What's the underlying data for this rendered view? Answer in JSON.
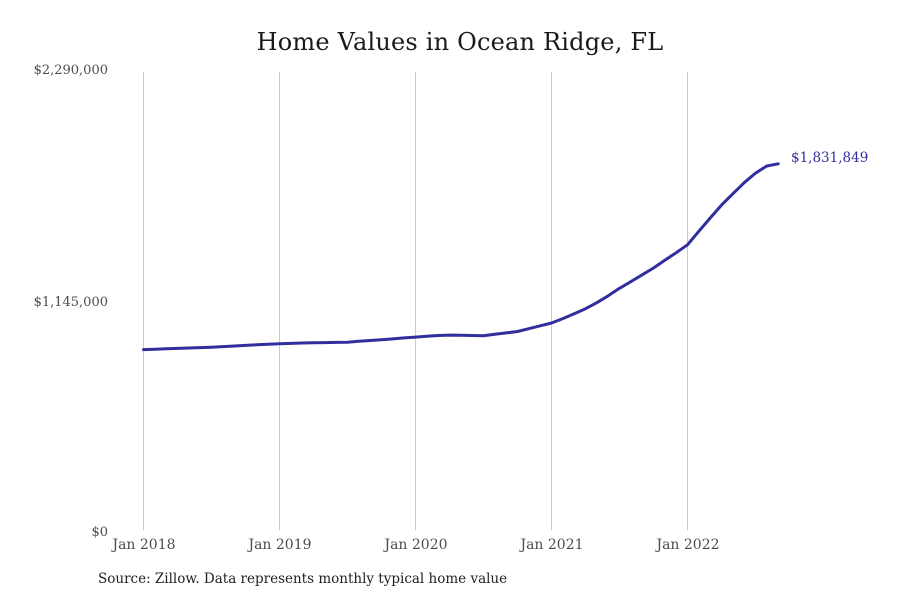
{
  "chart_data": {
    "type": "line",
    "title": "Home Values in Ocean Ridge, FL",
    "xlabel": "",
    "ylabel": "",
    "ylim": [
      0,
      2290000
    ],
    "grid": "vertical-only",
    "legend": "none",
    "line_color": "#312e9d",
    "grid_color": "#cbcbcb",
    "y_ticks": [
      {
        "value": 0,
        "label": "$0"
      },
      {
        "value": 1145000,
        "label": "$1,145,000"
      },
      {
        "value": 2290000,
        "label": "$2,290,000"
      }
    ],
    "x_ticks": [
      {
        "month_index": 0,
        "label": "Jan 2018"
      },
      {
        "month_index": 12,
        "label": "Jan 2019"
      },
      {
        "month_index": 24,
        "label": "Jan 2020"
      },
      {
        "month_index": 36,
        "label": "Jan 2021"
      },
      {
        "month_index": 48,
        "label": "Jan 2022"
      }
    ],
    "series": [
      {
        "name": "Monthly typical home value",
        "start_month": "Jan 2018",
        "end_month": "Sep 2022",
        "values": [
          910000,
          912000,
          914000,
          916000,
          918000,
          920000,
          922000,
          925000,
          928000,
          931000,
          934000,
          937000,
          939000,
          941000,
          943000,
          944000,
          945000,
          946000,
          947000,
          951000,
          955000,
          959000,
          963000,
          968000,
          972000,
          976000,
          980000,
          982000,
          981000,
          980000,
          979000,
          986000,
          993000,
          1000000,
          1014000,
          1028000,
          1042000,
          1064000,
          1088000,
          1113000,
          1143000,
          1177000,
          1214000,
          1247000,
          1281000,
          1315000,
          1353000,
          1391000,
          1430000,
          1497000,
          1563000,
          1627000,
          1683000,
          1738000,
          1786000,
          1821000,
          1831849
        ]
      }
    ],
    "end_value_label": "$1,831,849"
  },
  "labels": {
    "title": "Home Values in Ocean Ridge, FL",
    "y_tick_top": "$2,290,000",
    "y_tick_mid": "$1,145,000",
    "y_tick_zero": "$0",
    "x_tick_2018": "Jan 2018",
    "x_tick_2019": "Jan 2019",
    "x_tick_2020": "Jan 2020",
    "x_tick_2021": "Jan 2021",
    "x_tick_2022": "Jan 2022",
    "end_value": "$1,831,849",
    "source": "Source: Zillow. Data represents monthly typical home value"
  }
}
